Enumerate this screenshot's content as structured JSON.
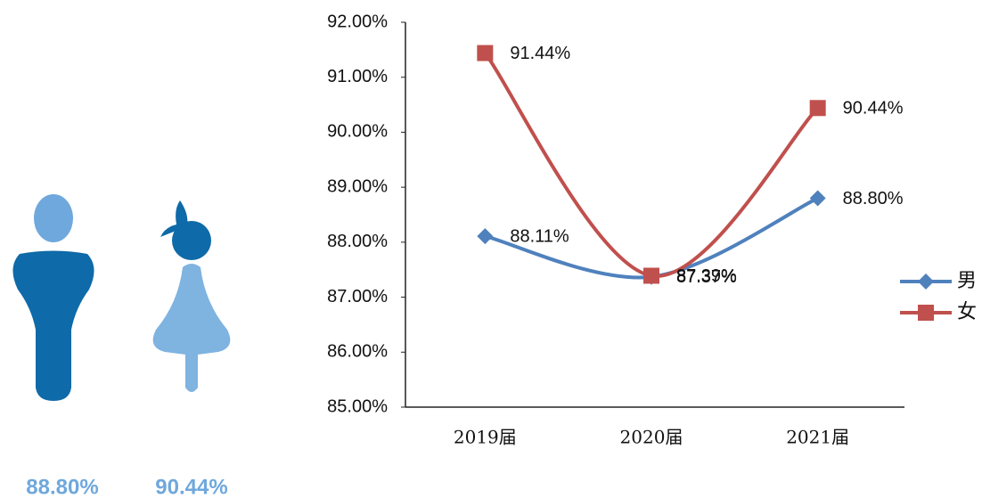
{
  "chart_data": {
    "type": "line",
    "categories": [
      "2019届",
      "2020届",
      "2021届"
    ],
    "series": [
      {
        "name": "男",
        "color": "#4f81bd",
        "marker": "diamond",
        "values": [
          88.11,
          87.37,
          88.8
        ],
        "value_labels": [
          "88.11%",
          "87.37%",
          "88.80%"
        ]
      },
      {
        "name": "女",
        "color": "#c0504d",
        "marker": "square",
        "values": [
          91.44,
          87.39,
          90.44
        ],
        "value_labels": [
          "91.44%",
          "87.39%",
          "90.44%"
        ]
      }
    ],
    "ylim": [
      85,
      92
    ],
    "yticks": [
      {
        "value": 85,
        "label": "85.00%"
      },
      {
        "value": 86,
        "label": "86.00%"
      },
      {
        "value": 87,
        "label": "87.00%"
      },
      {
        "value": 88,
        "label": "88.00%"
      },
      {
        "value": 89,
        "label": "89.00%"
      },
      {
        "value": 90,
        "label": "90.00%"
      },
      {
        "value": 91,
        "label": "91.00%"
      },
      {
        "value": 92,
        "label": "92.00%"
      }
    ],
    "grid": false,
    "legend": "right"
  },
  "gender_summary": [
    "88.80%",
    "90.44%"
  ]
}
